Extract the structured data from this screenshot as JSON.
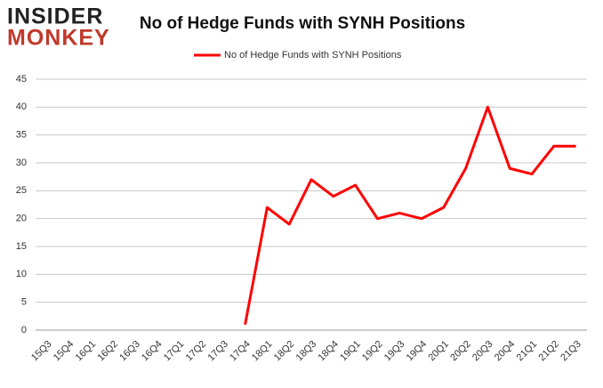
{
  "logo": {
    "line1": "INSIDER",
    "line2": "MONKEY"
  },
  "chart_data": {
    "type": "line",
    "title": "No of Hedge Funds with SYNH Positions",
    "categories": [
      "15Q3",
      "15Q4",
      "16Q1",
      "16Q2",
      "16Q3",
      "16Q4",
      "17Q1",
      "17Q2",
      "17Q3",
      "17Q4",
      "18Q1",
      "18Q2",
      "18Q3",
      "18Q4",
      "19Q1",
      "19Q2",
      "19Q3",
      "19Q4",
      "20Q1",
      "20Q2",
      "20Q3",
      "20Q4",
      "21Q1",
      "21Q2",
      "21Q3"
    ],
    "series": [
      {
        "name": "No of Hedge Funds with SYNH Positions",
        "color": "#ff0000",
        "values": [
          null,
          null,
          null,
          null,
          null,
          null,
          null,
          null,
          null,
          1,
          22,
          19,
          27,
          24,
          26,
          20,
          21,
          20,
          22,
          29,
          40,
          29,
          28,
          33,
          33
        ]
      }
    ],
    "ylim": [
      0,
      45
    ],
    "yticks": [
      0,
      5,
      10,
      15,
      20,
      25,
      30,
      35,
      40,
      45
    ],
    "grid": true,
    "legend": "top"
  }
}
